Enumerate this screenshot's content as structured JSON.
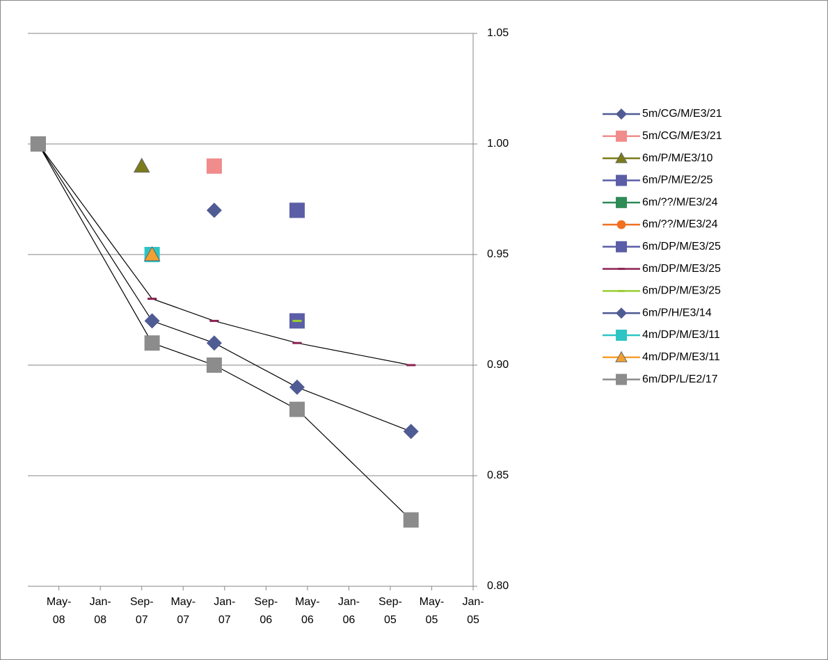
{
  "chart_data": {
    "type": "scatter",
    "xlim": [
      "2008-08",
      "2005-01"
    ],
    "xticks": [
      {
        "value": "2008-05",
        "label": "May-08"
      },
      {
        "value": "2008-01",
        "label": "Jan-08"
      },
      {
        "value": "2007-09",
        "label": "Sep-07"
      },
      {
        "value": "2007-05",
        "label": "May-07"
      },
      {
        "value": "2007-01",
        "label": "Jan-07"
      },
      {
        "value": "2006-09",
        "label": "Sep-06"
      },
      {
        "value": "2006-05",
        "label": "May-06"
      },
      {
        "value": "2006-01",
        "label": "Jan-06"
      },
      {
        "value": "2005-09",
        "label": "Sep-05"
      },
      {
        "value": "2005-05",
        "label": "May-05"
      },
      {
        "value": "2005-01",
        "label": "Jan-05"
      }
    ],
    "ylim": [
      0.8,
      1.05
    ],
    "yticks": [
      {
        "value": 0.8,
        "label": "0.80"
      },
      0.85,
      {
        "value": 0.9,
        "label": "0.90"
      },
      0.95,
      {
        "value": 1,
        "label": "1.00"
      },
      1.05
    ],
    "grid": true,
    "y_axis_side": "right",
    "legend": "right",
    "series": [
      {
        "name": "5m/CG/M/E3/21",
        "color": "#4F5B93",
        "marker": "diamond",
        "line_color": "#000000",
        "x": [
          "2008-07",
          "2007-08",
          "2007-02",
          "2006-06",
          "2005-07"
        ],
        "values": [
          1.0,
          0.92,
          0.91,
          0.89,
          0.87
        ]
      },
      {
        "name": "5m/CG/M/E3/21",
        "color": "#F08C8C",
        "marker": "square",
        "x": [
          "2007-02"
        ],
        "values": [
          0.99
        ]
      },
      {
        "name": "6m/P/M/E3/10",
        "color": "#7B7B1A",
        "marker": "triangle",
        "x": [
          "2007-09"
        ],
        "values": [
          0.99
        ]
      },
      {
        "name": "6m/P/M/E2/25",
        "color": "#5B5EA6",
        "marker": "square",
        "x": [
          "2006-06"
        ],
        "values": [
          0.97
        ]
      },
      {
        "name": "6m/??/M/E3/24",
        "color": "#2E8B57",
        "marker": "square",
        "x": [
          "2008-07"
        ],
        "values": [
          1.0
        ]
      },
      {
        "name": "6m/??/M/E3/24",
        "color": "#F07020",
        "marker": "circle",
        "x": [
          "2008-07"
        ],
        "values": [
          1.0
        ]
      },
      {
        "name": "6m/DP/M/E3/25",
        "color": "#5B5EA6",
        "marker": "square",
        "x": [
          "2006-06"
        ],
        "values": [
          0.92
        ]
      },
      {
        "name": "6m/DP/M/E3/25",
        "color": "#8B2252",
        "marker": "dash",
        "line_color": "#000000",
        "x": [
          "2008-07",
          "2007-08",
          "2007-02",
          "2006-06",
          "2005-07"
        ],
        "values": [
          1.0,
          0.93,
          0.92,
          0.91,
          0.9
        ]
      },
      {
        "name": "6m/DP/M/E3/25",
        "color": "#9ACD32",
        "marker": "dash",
        "x": [
          "2006-06"
        ],
        "values": [
          0.92
        ]
      },
      {
        "name": "6m/P/H/E3/14",
        "color": "#4F5B93",
        "marker": "diamond",
        "x": [
          "2007-02"
        ],
        "values": [
          0.97
        ]
      },
      {
        "name": "4m/DP/M/E3/11",
        "color": "#2EC4C4",
        "marker": "square",
        "x": [
          "2007-08"
        ],
        "values": [
          0.95
        ]
      },
      {
        "name": "4m/DP/M/E3/11",
        "color": "#F4A030",
        "marker": "triangle",
        "x": [
          "2007-08"
        ],
        "values": [
          0.95
        ]
      },
      {
        "name": "6m/DP/L/E2/17",
        "color": "#8C8C8C",
        "marker": "square",
        "line_color": "#000000",
        "x": [
          "2008-07",
          "2007-08",
          "2007-02",
          "2006-06",
          "2005-07"
        ],
        "values": [
          1.0,
          0.91,
          0.9,
          0.88,
          0.83
        ]
      }
    ]
  }
}
